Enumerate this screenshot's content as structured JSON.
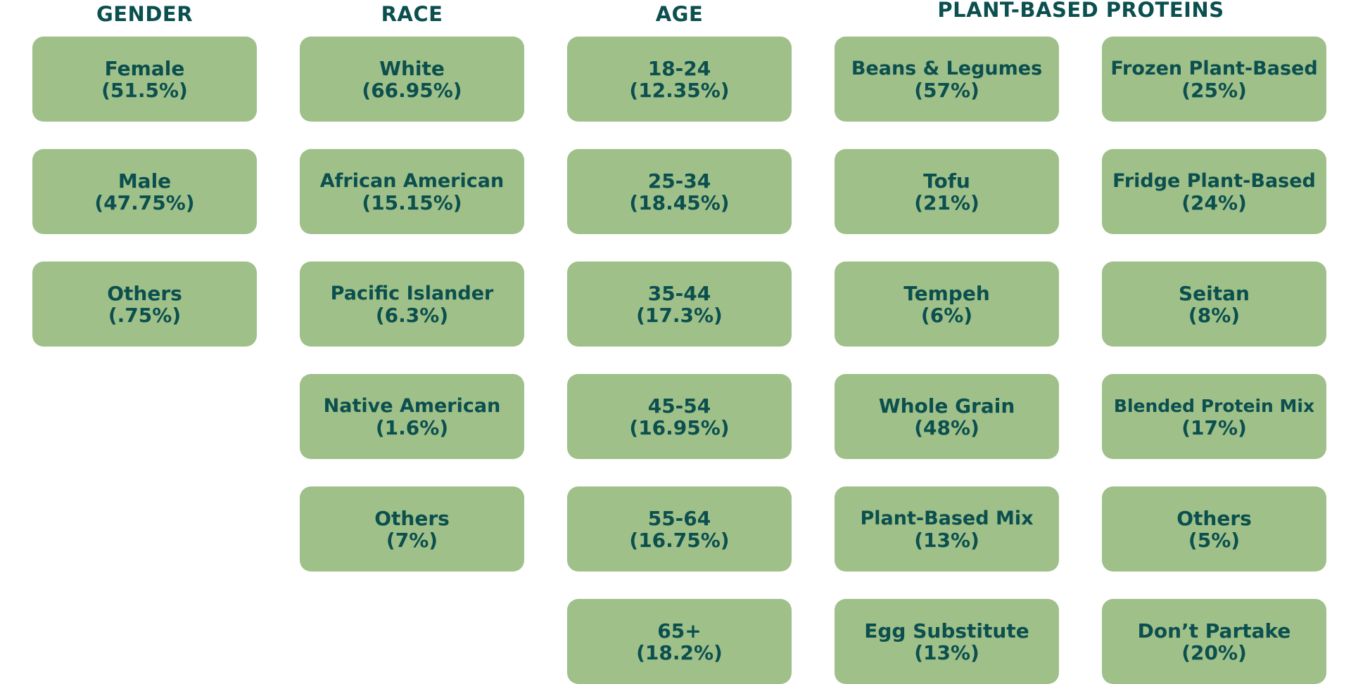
{
  "columns": {
    "gender": {
      "header": "GENDER",
      "items": [
        {
          "label": "Female",
          "value": "(51.5%)"
        },
        {
          "label": "Male",
          "value": "(47.75%)"
        },
        {
          "label": "Others",
          "value": "(.75%)"
        }
      ]
    },
    "race": {
      "header": "RACE",
      "items": [
        {
          "label": "White",
          "value": "(66.95%)"
        },
        {
          "label": "African American",
          "value": "(15.15%)"
        },
        {
          "label": "Pacific Islander",
          "value": "(6.3%)"
        },
        {
          "label": "Native American",
          "value": "(1.6%)"
        },
        {
          "label": "Others",
          "value": "(7%)"
        }
      ]
    },
    "age": {
      "header": "AGE",
      "items": [
        {
          "label": "18-24",
          "value": "(12.35%)"
        },
        {
          "label": "25-34",
          "value": "(18.45%)"
        },
        {
          "label": "35-44",
          "value": "(17.3%)"
        },
        {
          "label": "45-54",
          "value": "(16.95%)"
        },
        {
          "label": "55-64",
          "value": "(16.75%)"
        },
        {
          "label": "65+",
          "value": "(18.2%)"
        }
      ]
    },
    "proteins": {
      "header": "PLANT-BASED PROTEINS",
      "left": [
        {
          "label": "Beans & Legumes",
          "value": "(57%)"
        },
        {
          "label": "Tofu",
          "value": "(21%)"
        },
        {
          "label": "Tempeh",
          "value": "(6%)"
        },
        {
          "label": "Whole Grain",
          "value": "(48%)"
        },
        {
          "label": "Plant-Based Mix",
          "value": "(13%)"
        },
        {
          "label": "Egg Substitute",
          "value": "(13%)"
        }
      ],
      "right": [
        {
          "label": "Frozen Plant-Based",
          "value": "(25%)"
        },
        {
          "label": "Fridge Plant-Based",
          "value": "(24%)"
        },
        {
          "label": "Seitan",
          "value": "(8%)"
        },
        {
          "label": "Blended Protein Mix",
          "value": "(17%)"
        },
        {
          "label": "Others",
          "value": "(5%)"
        },
        {
          "label": "Don’t Partake",
          "value": "(20%)"
        }
      ]
    }
  },
  "colors": {
    "card_fill": "#9fc088",
    "text": "#0b4f4f",
    "background": "#ffffff"
  }
}
